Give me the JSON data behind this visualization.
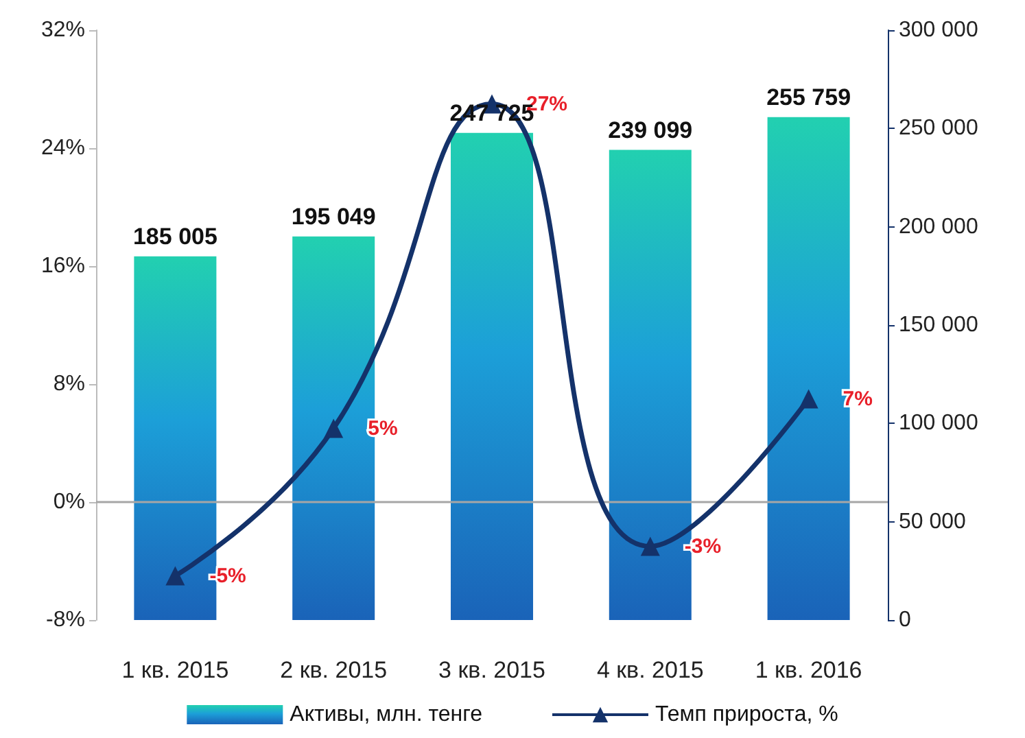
{
  "chart_data": {
    "type": "bar",
    "categories": [
      "1 кв. 2015",
      "2 кв. 2015",
      "3 кв. 2015",
      "4 кв. 2015",
      "1 кв. 2016"
    ],
    "series": [
      {
        "name": "Активы, млн. тенге",
        "axis": "y2",
        "color": "#1c9fd8",
        "values": [
          185005,
          195049,
          247725,
          239099,
          255759
        ],
        "value_labels": [
          "185 005",
          "195 049",
          "247 725",
          "239 099",
          "255 759"
        ]
      },
      {
        "name": "Темп прироста, %",
        "type": "line",
        "axis": "y",
        "color": "#14326a",
        "marker": "triangle",
        "values": [
          -5,
          5,
          27,
          -3,
          7
        ],
        "value_labels": [
          "-5%",
          "5%",
          "27%",
          "-3%",
          "7%"
        ]
      }
    ],
    "ylim": [
      -8,
      32
    ],
    "yticks": [
      {
        "value": -8,
        "label": "-8%"
      },
      {
        "value": 0,
        "label": "0%"
      },
      {
        "value": 8,
        "label": "8%"
      },
      {
        "value": 16,
        "label": "16%"
      },
      {
        "value": 24,
        "label": "24%"
      },
      {
        "value": 32,
        "label": "32%"
      }
    ],
    "y2lim": [
      0,
      300000
    ],
    "y2ticks": [
      {
        "value": 0,
        "label": "0"
      },
      {
        "value": 50000,
        "label": "50 000"
      },
      {
        "value": 100000,
        "label": "100 000"
      },
      {
        "value": 150000,
        "label": "150 000"
      },
      {
        "value": 200000,
        "label": "200 000"
      },
      {
        "value": 250000,
        "label": "250 000"
      },
      {
        "value": 300000,
        "label": "300 000"
      }
    ],
    "ref_lines": [
      {
        "axis": "y",
        "value": 0,
        "color": "#a6a6a6"
      }
    ],
    "legend": "bottom",
    "grid": false
  }
}
